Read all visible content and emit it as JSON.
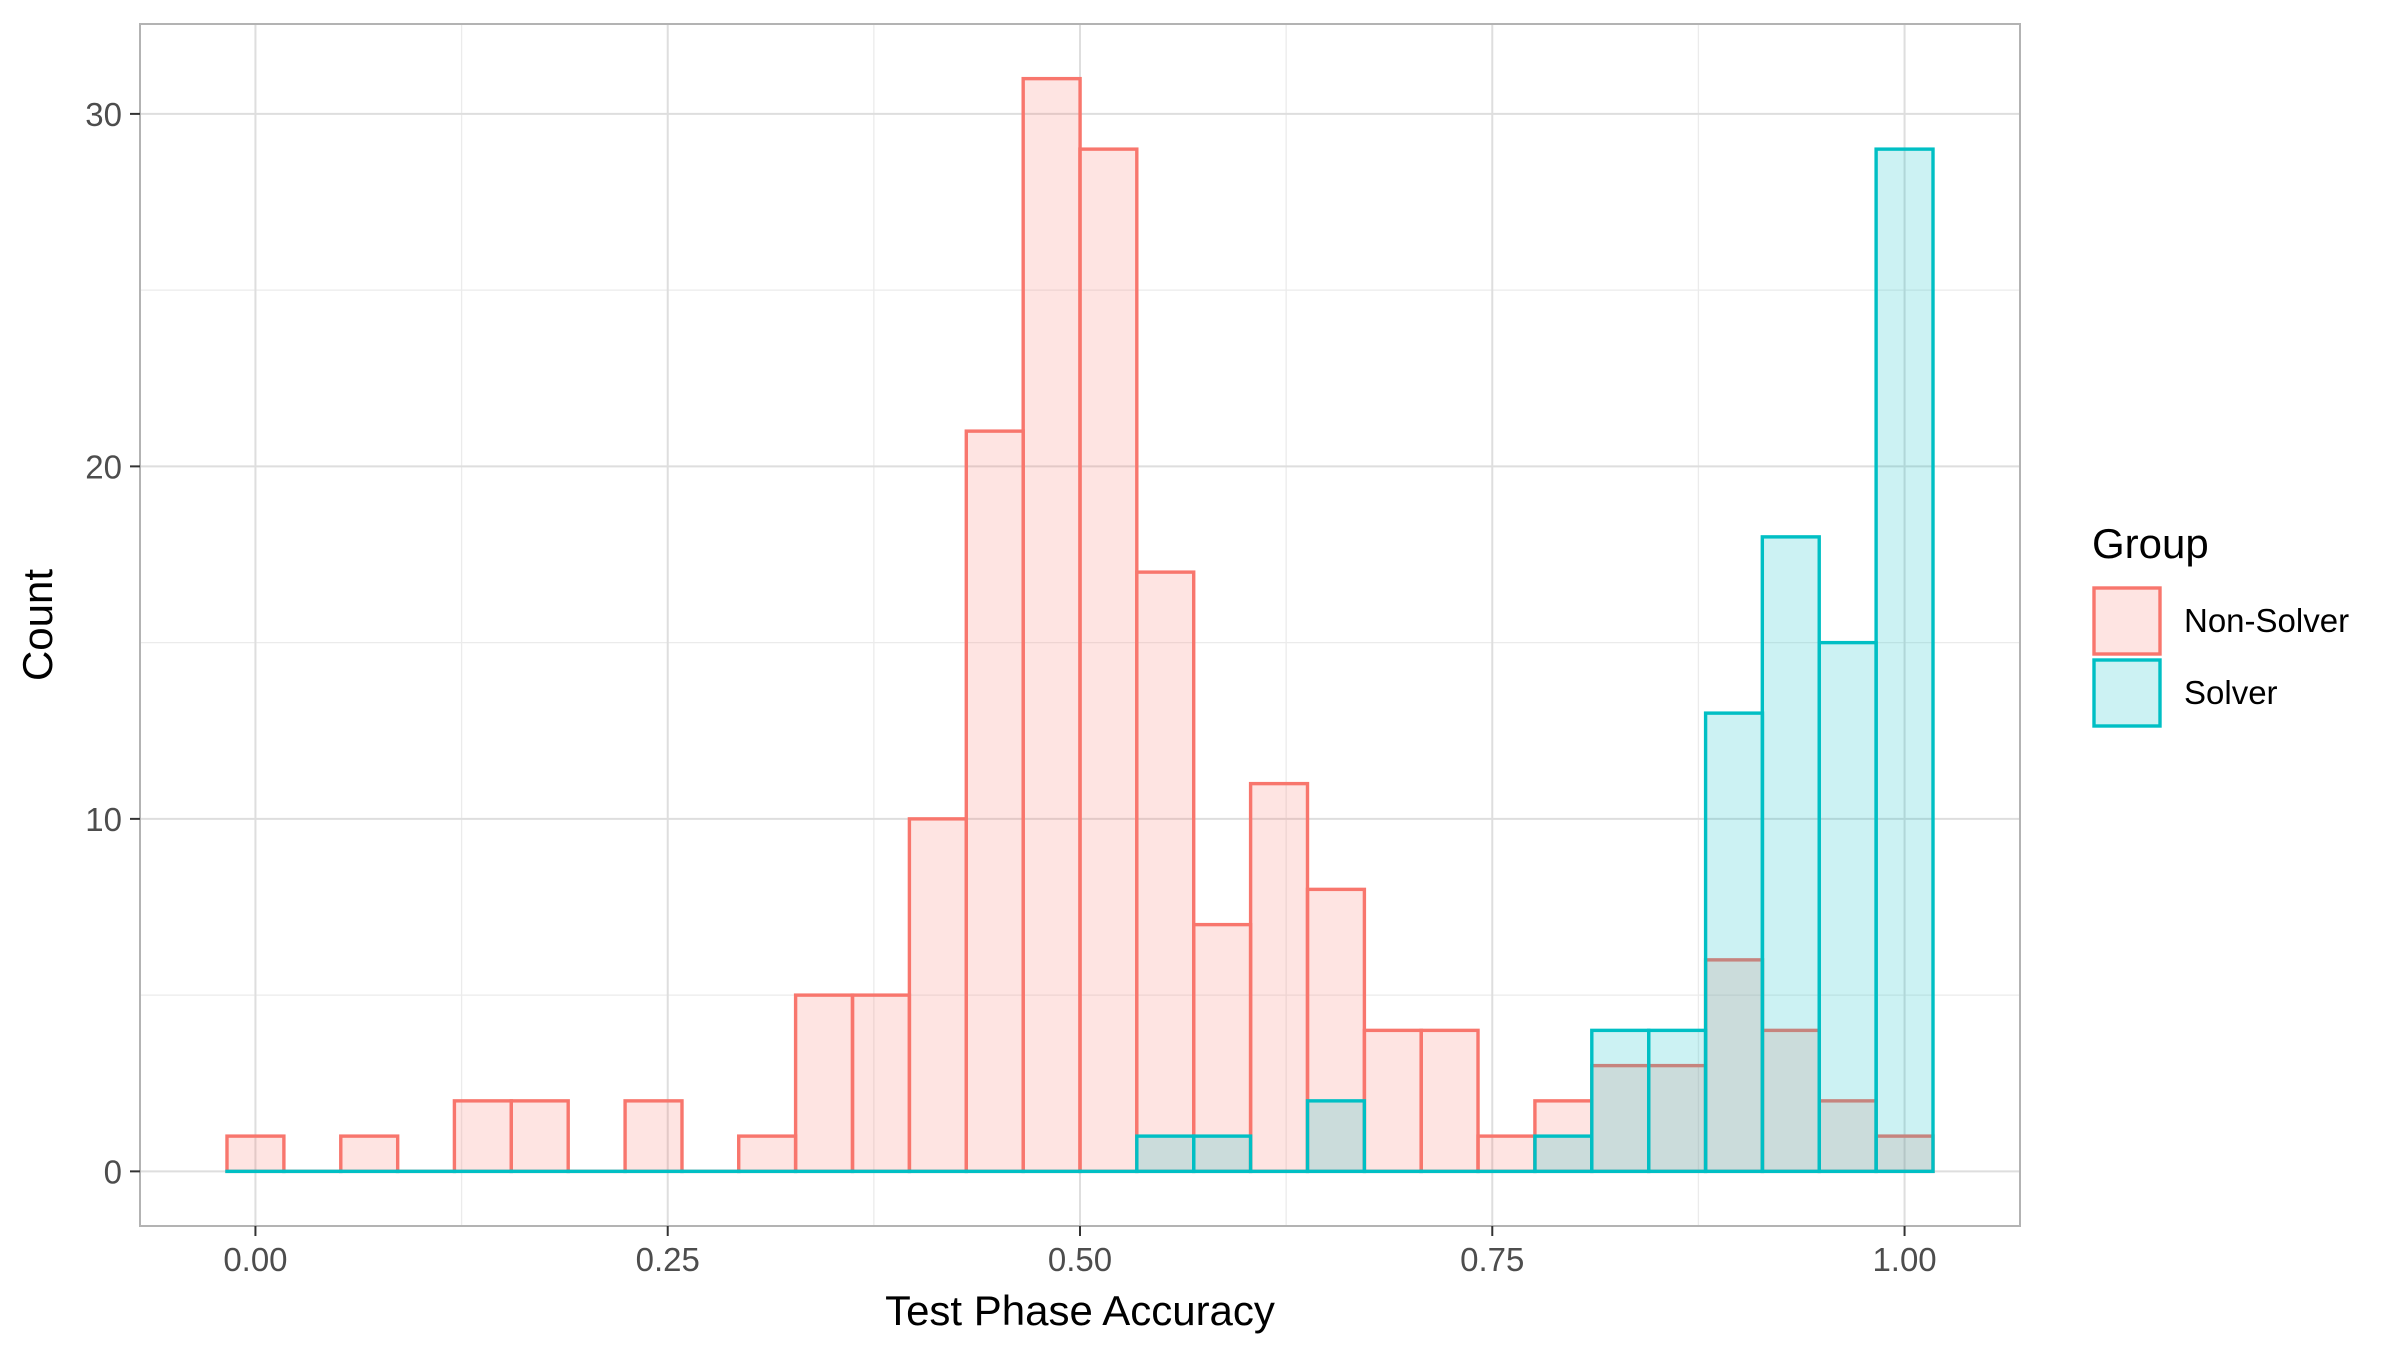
{
  "chart_data": {
    "type": "histogram",
    "title": "",
    "xlabel": "Test Phase Accuracy",
    "ylabel": "Count",
    "xlim": [
      -0.07,
      1.07
    ],
    "ylim": [
      -1.55,
      32.55
    ],
    "x_ticks": [
      0.0,
      0.25,
      0.5,
      0.75,
      1.0
    ],
    "x_tick_labels": [
      "0.00",
      "0.25",
      "0.50",
      "0.75",
      "1.00"
    ],
    "y_ticks": [
      0,
      10,
      20,
      30
    ],
    "y_tick_labels": [
      "0",
      "10",
      "20",
      "30"
    ],
    "grid": true,
    "legend": {
      "title": "Group",
      "placement": "right"
    },
    "bin_width": 0.0345,
    "bin_centers": [
      0.0,
      0.0345,
      0.069,
      0.1034,
      0.1379,
      0.1724,
      0.2069,
      0.2414,
      0.2759,
      0.3103,
      0.3448,
      0.3793,
      0.4138,
      0.4483,
      0.4828,
      0.5172,
      0.5517,
      0.5862,
      0.6207,
      0.6552,
      0.6897,
      0.7241,
      0.7586,
      0.7931,
      0.8276,
      0.8621,
      0.8966,
      0.931,
      0.9655,
      1.0
    ],
    "series": [
      {
        "name": "Non-Solver",
        "stroke": "#F8766D",
        "fill": "#F8766D",
        "fill_opacity": 0.2,
        "values": [
          1,
          0,
          1,
          0,
          2,
          2,
          0,
          2,
          0,
          1,
          5,
          5,
          10,
          21,
          31,
          29,
          17,
          7,
          11,
          8,
          4,
          4,
          1,
          2,
          3,
          3,
          6,
          4,
          2,
          1
        ]
      },
      {
        "name": "Solver",
        "stroke": "#00BFC4",
        "fill": "#00BFC4",
        "fill_opacity": 0.2,
        "values": [
          0,
          0,
          0,
          0,
          0,
          0,
          0,
          0,
          0,
          0,
          0,
          0,
          0,
          0,
          0,
          0,
          1,
          1,
          0,
          2,
          0,
          0,
          0,
          1,
          4,
          4,
          13,
          18,
          15,
          29
        ]
      }
    ]
  }
}
